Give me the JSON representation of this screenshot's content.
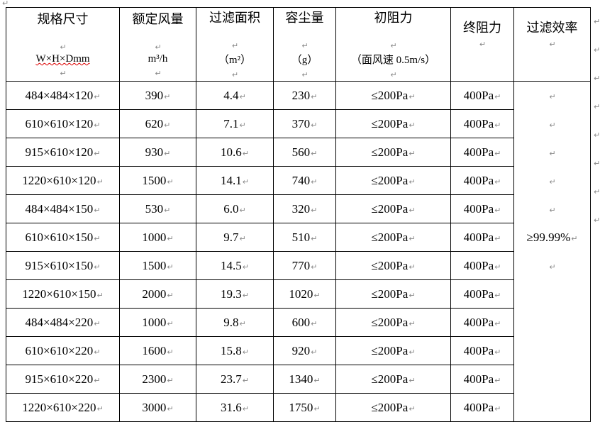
{
  "table": {
    "headers": [
      {
        "line1": "规格尺寸",
        "line2": "W×H×Dmm"
      },
      {
        "line1": "额定风量",
        "line2": "m³/h"
      },
      {
        "line1": "过滤面积",
        "line2": "（m²）"
      },
      {
        "line1": "容尘量",
        "line2": "（g）"
      },
      {
        "line1": "初阻力",
        "line2": "（面风速 0.5m/s）"
      },
      {
        "line1": "终阻力",
        "line2": ""
      },
      {
        "line1": "过滤效率",
        "line2": ""
      }
    ],
    "rows": [
      [
        "484×484×120",
        "390",
        "4.4",
        "230",
        "≤200Pa",
        "400Pa"
      ],
      [
        "610×610×120",
        "620",
        "7.1",
        "370",
        "≤200Pa",
        "400Pa"
      ],
      [
        "915×610×120",
        "930",
        "10.6",
        "560",
        "≤200Pa",
        "400Pa"
      ],
      [
        "1220×610×120",
        "1500",
        "14.1",
        "740",
        "≤200Pa",
        "400Pa"
      ],
      [
        "484×484×150",
        "530",
        "6.0",
        "320",
        "≤200Pa",
        "400Pa"
      ],
      [
        "610×610×150",
        "1000",
        "9.7",
        "510",
        "≤200Pa",
        "400Pa"
      ],
      [
        "915×610×150",
        "1500",
        "14.5",
        "770",
        "≤200Pa",
        "400Pa"
      ],
      [
        "1220×610×150",
        "2000",
        "19.3",
        "1020",
        "≤200Pa",
        "400Pa"
      ],
      [
        "484×484×220",
        "1000",
        "9.8",
        "600",
        "≤200Pa",
        "400Pa"
      ],
      [
        "610×610×220",
        "1600",
        "15.8",
        "920",
        "≤200Pa",
        "400Pa"
      ],
      [
        "915×610×220",
        "2300",
        "23.7",
        "1340",
        "≤200Pa",
        "400Pa"
      ],
      [
        "1220×610×220",
        "3000",
        "31.6",
        "1750",
        "≤200Pa",
        "400Pa"
      ]
    ],
    "efficiency": "≥99.99%"
  },
  "paragraph_mark": "↵"
}
